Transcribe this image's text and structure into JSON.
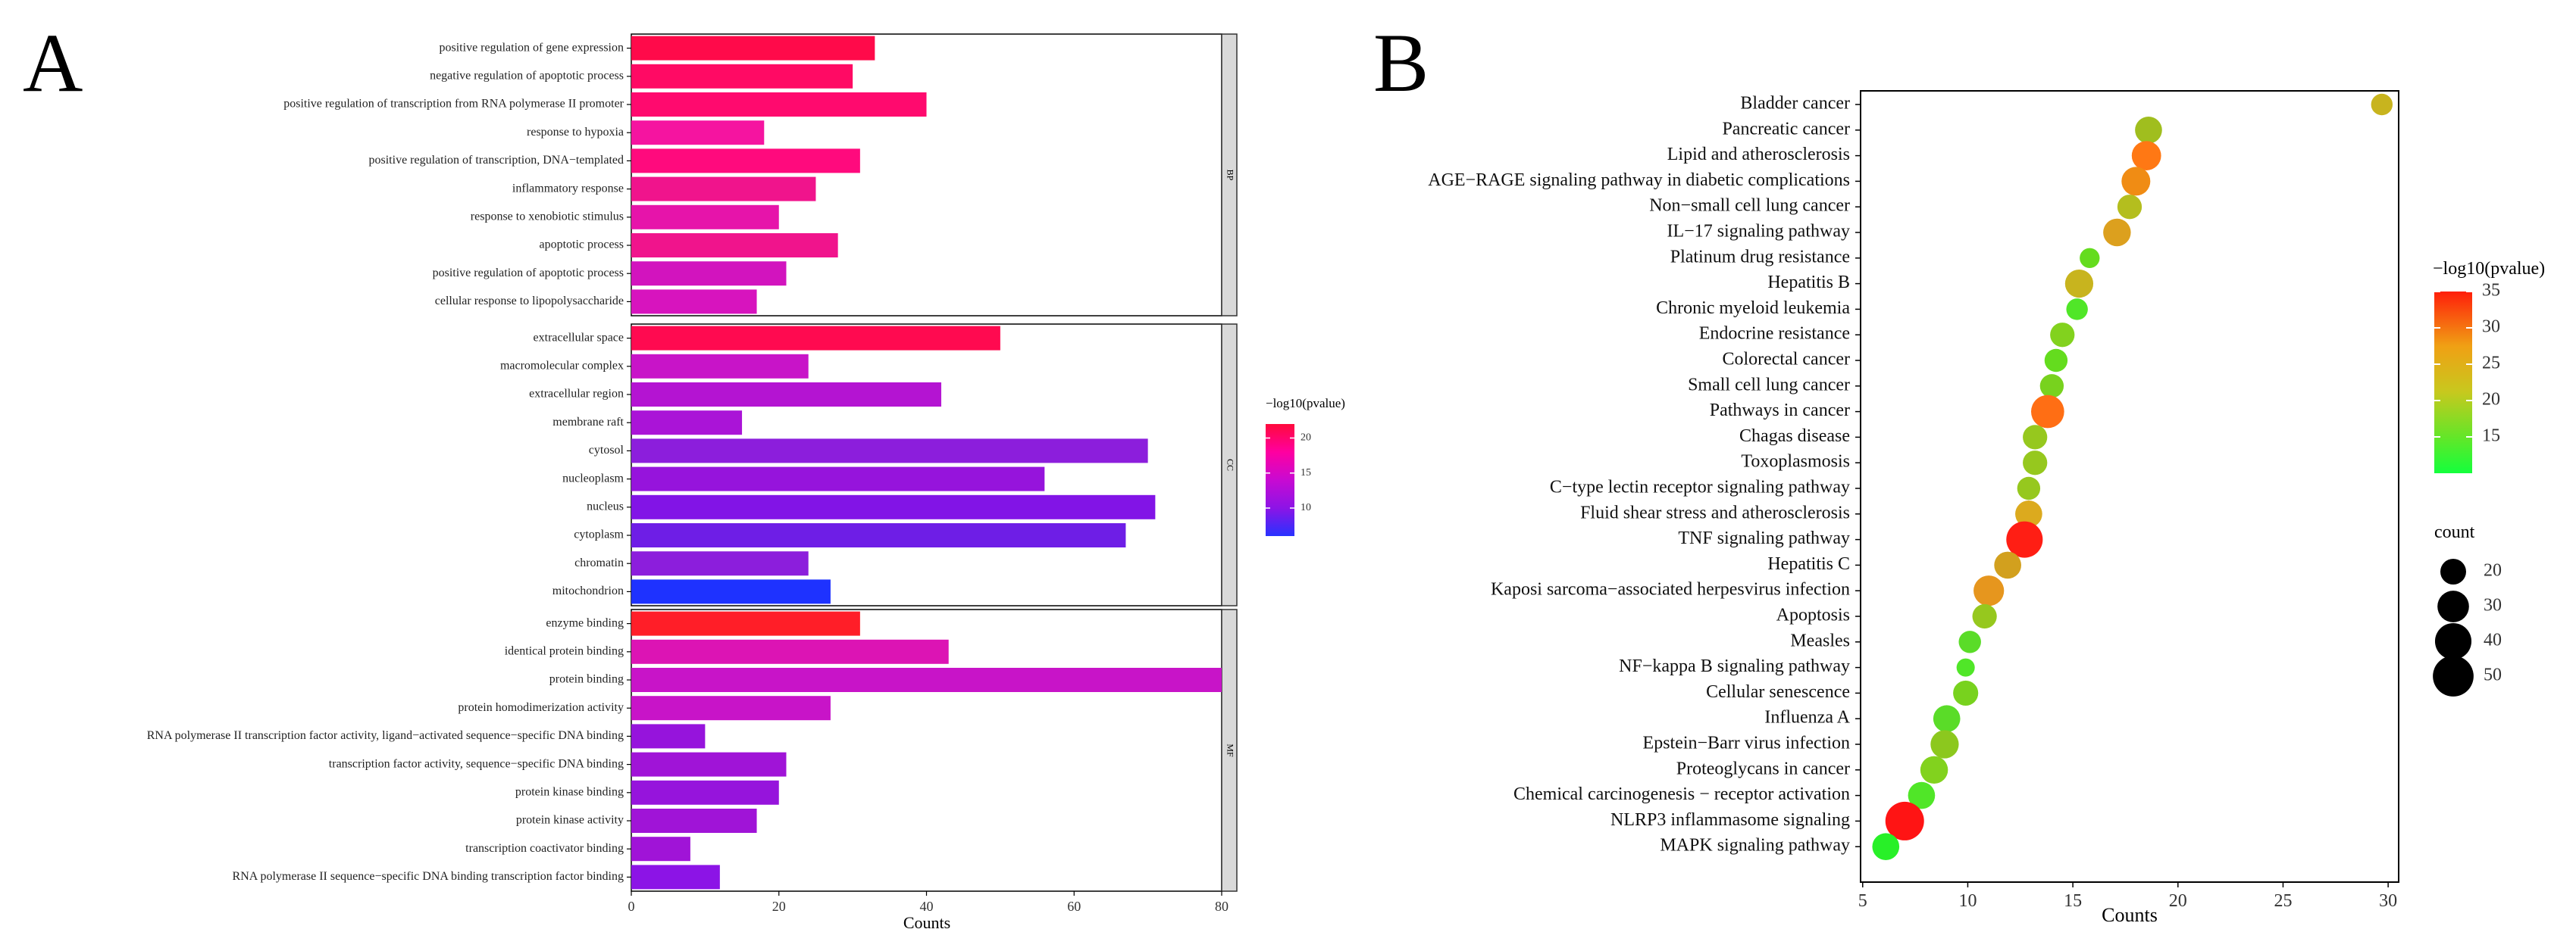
{
  "panel_a": {
    "label": "A",
    "chart_data": {
      "type": "bar",
      "orientation": "horizontal",
      "xlabel": "Counts",
      "xlim": [
        0,
        80
      ],
      "xticks": [
        "0",
        "20",
        "40",
        "60",
        "80"
      ],
      "xtick_values": [
        0,
        20,
        40,
        60,
        80
      ],
      "legend_title": "−log10(pvalue)",
      "legend_ticks": [
        "20",
        "15",
        "10"
      ],
      "legend_tick_values": [
        20,
        15,
        10
      ],
      "legend_range": [
        6,
        22
      ],
      "legend_colors": [
        "#ff0a3c",
        "#ff00a0",
        "#c80ad2",
        "#8c14e6",
        "#2832ff"
      ],
      "facets": [
        {
          "name": "BP",
          "categories": [
            "positive regulation of gene expression",
            "negative regulation of apoptotic process",
            "positive regulation of transcription from RNA polymerase II promoter",
            "response to hypoxia",
            "positive regulation of transcription, DNA−templated",
            "inflammatory response",
            "response to xenobiotic stimulus",
            "apoptotic process",
            "positive regulation of apoptotic process",
            "cellular response to lipopolysaccharide"
          ],
          "values": [
            33,
            30,
            40,
            18,
            31,
            25,
            20,
            28,
            21,
            17
          ],
          "colors": [
            "#ff0a4a",
            "#ff0a64",
            "#ff0a6e",
            "#f514a0",
            "#ff0a7d",
            "#f0148c",
            "#e614aa",
            "#f0148c",
            "#d214be",
            "#d714be"
          ]
        },
        {
          "name": "CC",
          "categories": [
            "extracellular space",
            "macromolecular complex",
            "extracellular region",
            "membrane raft",
            "cytosol",
            "nucleoplasm",
            "nucleus",
            "cytoplasm",
            "chromatin",
            "mitochondrion"
          ],
          "values": [
            50,
            24,
            42,
            15,
            70,
            56,
            71,
            67,
            24,
            27
          ],
          "colors": [
            "#ff0a50",
            "#c814c8",
            "#b414d2",
            "#aa14d7",
            "#8c1edc",
            "#9614dc",
            "#8214e6",
            "#6e1ee6",
            "#8c1edc",
            "#1e32ff"
          ]
        },
        {
          "name": "MF",
          "categories": [
            "enzyme binding",
            "identical protein binding",
            "protein binding",
            "protein homodimerization activity",
            "RNA polymerase II transcription factor activity, ligand−activated sequence−specific DNA binding",
            "transcription factor activity, sequence−specific DNA binding",
            "protein kinase binding",
            "protein kinase activity",
            "transcription coactivator binding",
            "RNA polymerase II sequence−specific DNA binding transcription factor binding"
          ],
          "values": [
            31,
            43,
            80,
            27,
            10,
            21,
            20,
            17,
            8,
            12
          ],
          "colors": [
            "#ff1e28",
            "#dc14b4",
            "#c814c8",
            "#c814c8",
            "#9614dc",
            "#a014d7",
            "#9614dc",
            "#a014d7",
            "#a014d7",
            "#8c14e6"
          ]
        }
      ]
    }
  },
  "panel_b": {
    "label": "B",
    "chart_data": {
      "type": "scatter",
      "xlabel": "Counts",
      "xlim": [
        5,
        30
      ],
      "xticks": [
        "5",
        "10",
        "15",
        "20",
        "25",
        "30"
      ],
      "xtick_values": [
        5,
        10,
        15,
        20,
        25,
        30
      ],
      "color_legend_title": "−log10(pvalue)",
      "color_legend_ticks": [
        "35",
        "30",
        "25",
        "20",
        "15"
      ],
      "color_legend_tick_values": [
        35,
        30,
        25,
        20,
        15
      ],
      "color_range": [
        10,
        35
      ],
      "size_legend_title": "count",
      "size_legend_labels": [
        "20",
        "30",
        "40",
        "50"
      ],
      "size_legend_values": [
        20,
        30,
        40,
        50
      ],
      "categories": [
        "Bladder cancer",
        "Pancreatic cancer",
        "Lipid and atherosclerosis",
        "AGE−RAGE signaling pathway in diabetic complications",
        "Non−small cell lung cancer",
        "IL−17 signaling pathway",
        "Platinum drug resistance",
        "Hepatitis B",
        "Chronic myeloid leukemia",
        "Endocrine resistance",
        "Colorectal cancer",
        "Small cell lung cancer",
        "Pathways in cancer",
        "Chagas disease",
        "Toxoplasmosis",
        "C−type lectin receptor signaling pathway",
        "Fluid shear stress and atherosclerosis",
        "TNF signaling pathway",
        "Hepatitis C",
        "Kaposi sarcoma−associated herpesvirus infection",
        "Apoptosis",
        "Measles",
        "NF−kappa B signaling pathway",
        "Cellular senescence",
        "Influenza A",
        "Epstein−Barr virus infection",
        "Proteoglycans in cancer",
        "Chemical carcinogenesis − receptor activation",
        "NLRP3 inflammasome signaling",
        "MAPK signaling pathway"
      ],
      "x": [
        29.7,
        18.6,
        18.5,
        18.0,
        17.7,
        17.1,
        15.8,
        15.3,
        15.2,
        14.5,
        14.2,
        14.0,
        13.8,
        13.2,
        13.2,
        12.9,
        12.9,
        12.7,
        11.9,
        11.0,
        10.8,
        10.1,
        9.9,
        9.9,
        9.0,
        8.9,
        8.4,
        7.8,
        7.0,
        6.1
      ],
      "counts": [
        14,
        22,
        26,
        25,
        18,
        23,
        12,
        24,
        14,
        18,
        16,
        17,
        33,
        18,
        18,
        16,
        22,
        40,
        22,
        28,
        18,
        15,
        10,
        19,
        22,
        24,
        23,
        22,
        45,
        22
      ],
      "colors": [
        "#c8b41e",
        "#a0be1e",
        "#ff7814",
        "#f08c14",
        "#b4be1e",
        "#dca01e",
        "#64dc1e",
        "#c8b41e",
        "#50e628",
        "#82d21e",
        "#64dc1e",
        "#78d21e",
        "#ff6e14",
        "#96c81e",
        "#96c81e",
        "#96c81e",
        "#dcaa1e",
        "#ff1e14",
        "#d2a01e",
        "#e6961e",
        "#96c81e",
        "#5adc28",
        "#50e628",
        "#78d21e",
        "#5adc28",
        "#8cc81e",
        "#82d21e",
        "#50e628",
        "#ff1414",
        "#28f028"
      ]
    }
  }
}
